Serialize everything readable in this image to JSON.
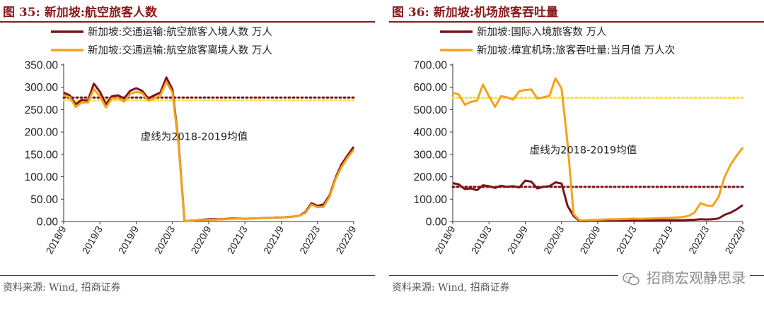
{
  "charts": [
    {
      "title": "图 35:  新加坡:航空旅客人数",
      "source": "资料来源:  Wind,  招商证券",
      "chart_data": {
        "type": "line",
        "x": [
          "2018/9",
          "2018/10",
          "2018/11",
          "2018/12",
          "2019/1",
          "2019/2",
          "2019/3",
          "2019/4",
          "2019/5",
          "2019/6",
          "2019/7",
          "2019/8",
          "2019/9",
          "2019/10",
          "2019/11",
          "2019/12",
          "2020/1",
          "2020/2",
          "2020/3",
          "2020/4",
          "2020/5",
          "2020/6",
          "2020/7",
          "2020/8",
          "2020/9",
          "2020/10",
          "2020/11",
          "2020/12",
          "2021/1",
          "2021/2",
          "2021/3",
          "2021/4",
          "2021/5",
          "2021/6",
          "2021/7",
          "2021/8",
          "2021/9",
          "2021/10",
          "2021/11",
          "2021/12",
          "2022/1",
          "2022/2",
          "2022/3",
          "2022/4",
          "2022/5",
          "2022/6",
          "2022/7",
          "2022/8",
          "2022/9"
        ],
        "tick_labels": [
          "2018/9",
          "2019/3",
          "2019/9",
          "2020/3",
          "2020/9",
          "2021/3",
          "2021/9",
          "2022/3",
          "2022/9"
        ],
        "ylim": [
          0,
          350
        ],
        "ytick_labels": [
          "0.00",
          "50.00",
          "100.00",
          "150.00",
          "200.00",
          "250.00",
          "300.00",
          "350.00"
        ],
        "series": [
          {
            "name": "新加坡:交通运输:航空旅客入境人数 万人",
            "color": "#7b1416",
            "values": [
              288,
              282,
              262,
              272,
              270,
              308,
              290,
              262,
              280,
              282,
              275,
              292,
              298,
              292,
              275,
              282,
              288,
              322,
              295,
              178,
              1,
              2,
              3,
              4,
              5,
              5,
              5,
              6,
              7,
              7,
              6,
              7,
              7,
              8,
              8,
              9,
              9,
              10,
              11,
              13,
              21,
              41,
              35,
              38,
              58,
              98,
              128,
              148,
              167
            ]
          },
          {
            "name": "新加坡:交通运输:航空旅客离境人数 万人",
            "color": "#f5a21b",
            "values": [
              282,
              278,
              256,
              266,
              266,
              296,
              280,
              255,
              275,
              276,
              268,
              285,
              290,
              287,
              270,
              276,
              282,
              312,
              288,
              173,
              1,
              2,
              3,
              3,
              4,
              4,
              5,
              5,
              6,
              7,
              6,
              7,
              7,
              8,
              8,
              9,
              9,
              10,
              11,
              13,
              19,
              38,
              32,
              33,
              55,
              95,
              122,
              143,
              160
            ]
          }
        ],
        "reference_lines": [
          {
            "color": "#7b1416",
            "value": 277
          },
          {
            "color": "#f5e040",
            "value": 271
          }
        ],
        "annotation": "虚线为2018-2019均值"
      }
    },
    {
      "title": "图 36:  新加坡:机场旅客吞吐量",
      "source": "资料来源:  Wind,  招商证券",
      "chart_data": {
        "type": "line",
        "x": [
          "2018/9",
          "2018/10",
          "2018/11",
          "2018/12",
          "2019/1",
          "2019/2",
          "2019/3",
          "2019/4",
          "2019/5",
          "2019/6",
          "2019/7",
          "2019/8",
          "2019/9",
          "2019/10",
          "2019/11",
          "2019/12",
          "2020/1",
          "2020/2",
          "2020/3",
          "2020/4",
          "2020/5",
          "2020/6",
          "2020/7",
          "2020/8",
          "2020/9",
          "2020/10",
          "2020/11",
          "2020/12",
          "2021/1",
          "2021/2",
          "2021/3",
          "2021/4",
          "2021/5",
          "2021/6",
          "2021/7",
          "2021/8",
          "2021/9",
          "2021/10",
          "2021/11",
          "2021/12",
          "2022/1",
          "2022/2",
          "2022/3",
          "2022/4",
          "2022/5",
          "2022/6",
          "2022/7",
          "2022/8",
          "2022/9"
        ],
        "tick_labels": [
          "2018/9",
          "2019/3",
          "2019/9",
          "2020/3",
          "2020/9",
          "2021/3",
          "2021/9",
          "2022/3",
          "2022/9"
        ],
        "ylim": [
          0,
          700
        ],
        "ytick_labels": [
          "0.00",
          "100.00",
          "200.00",
          "300.00",
          "400.00",
          "500.00",
          "600.00",
          "700.00"
        ],
        "series": [
          {
            "name": "新加坡:国际入境旅客数 万人",
            "color": "#7b1416",
            "values": [
              172,
              166,
              145,
              148,
              140,
              162,
              158,
              150,
              160,
              155,
              158,
              152,
              183,
              178,
              148,
              155,
              158,
              175,
              170,
              70,
              25,
              2,
              2,
              3,
              3,
              4,
              4,
              4,
              5,
              5,
              5,
              5,
              5,
              5,
              6,
              6,
              6,
              6,
              6,
              7,
              8,
              10,
              9,
              10,
              14,
              30,
              40,
              55,
              73
            ]
          },
          {
            "name": "新加坡:樟宜机场:旅客吞吐量:当月值 万人次",
            "color": "#f5a21b",
            "values": [
              575,
              568,
              522,
              535,
              540,
              612,
              560,
              512,
              560,
              555,
              545,
              582,
              588,
              590,
              550,
              555,
              562,
              640,
              595,
              350,
              33,
              5,
              6,
              7,
              8,
              9,
              10,
              10,
              11,
              12,
              13,
              12,
              13,
              14,
              15,
              16,
              17,
              18,
              20,
              25,
              40,
              82,
              72,
              70,
              110,
              200,
              255,
              295,
              330
            ]
          }
        ],
        "reference_lines": [
          {
            "color": "#7b1416",
            "value": 155
          },
          {
            "color": "#f5e040",
            "value": 553
          }
        ],
        "annotation": "虚线为2018-2019均值"
      }
    }
  ],
  "watermark": {
    "text": "招商宏观静思录",
    "icon": "wechat-icon"
  }
}
